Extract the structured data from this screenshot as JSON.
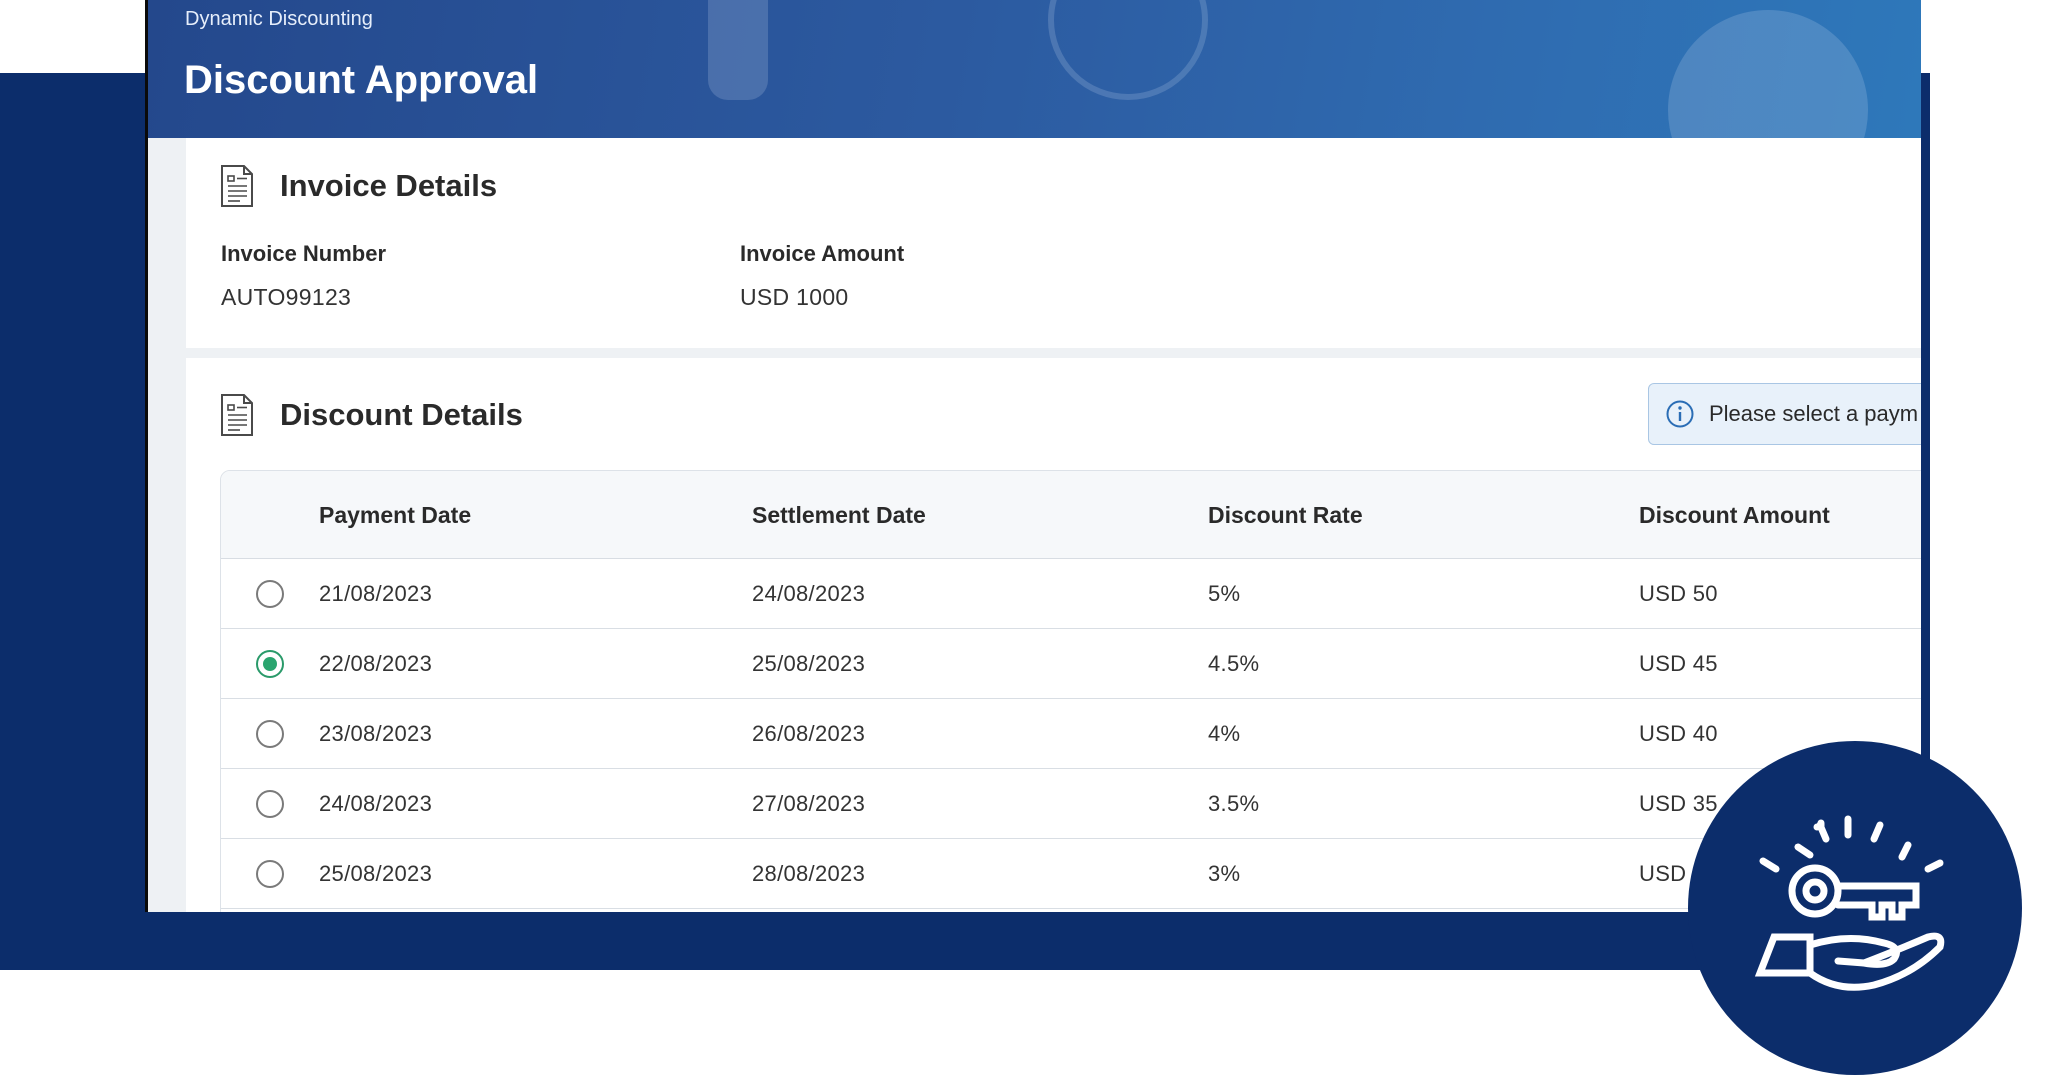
{
  "header": {
    "breadcrumb": "Dynamic Discounting",
    "title": "Discount Approval"
  },
  "invoice": {
    "section_title": "Invoice Details",
    "section_icon": "document-icon",
    "number_label": "Invoice Number",
    "number_value": "AUTO99123",
    "amount_label": "Invoice Amount",
    "amount_value": "USD 1000"
  },
  "discount": {
    "section_title": "Discount Details",
    "section_icon": "document-icon",
    "info_icon": "info-icon",
    "info_text": "Please select a paym",
    "columns": [
      "Payment Date",
      "Settlement Date",
      "Discount Rate",
      "Discount Amount"
    ],
    "rows": [
      {
        "selected": false,
        "payment_date": "21/08/2023",
        "settlement_date": "24/08/2023",
        "rate": "5%",
        "amount": "USD 50"
      },
      {
        "selected": true,
        "payment_date": "22/08/2023",
        "settlement_date": "25/08/2023",
        "rate": "4.5%",
        "amount": "USD 45"
      },
      {
        "selected": false,
        "payment_date": "23/08/2023",
        "settlement_date": "26/08/2023",
        "rate": "4%",
        "amount": "USD 40"
      },
      {
        "selected": false,
        "payment_date": "24/08/2023",
        "settlement_date": "27/08/2023",
        "rate": "3.5%",
        "amount": "USD 35"
      },
      {
        "selected": false,
        "payment_date": "25/08/2023",
        "settlement_date": "28/08/2023",
        "rate": "3%",
        "amount": "USD"
      }
    ]
  },
  "badge": {
    "icon": "key-in-hand-icon"
  },
  "colors": {
    "navy": "#0c2d6b",
    "header_gradient_start": "#24488c",
    "header_gradient_end": "#2e78ba",
    "radio_selected": "#2aa56f",
    "info_bg": "#e8f1fa",
    "info_border": "#a9c6e4"
  }
}
